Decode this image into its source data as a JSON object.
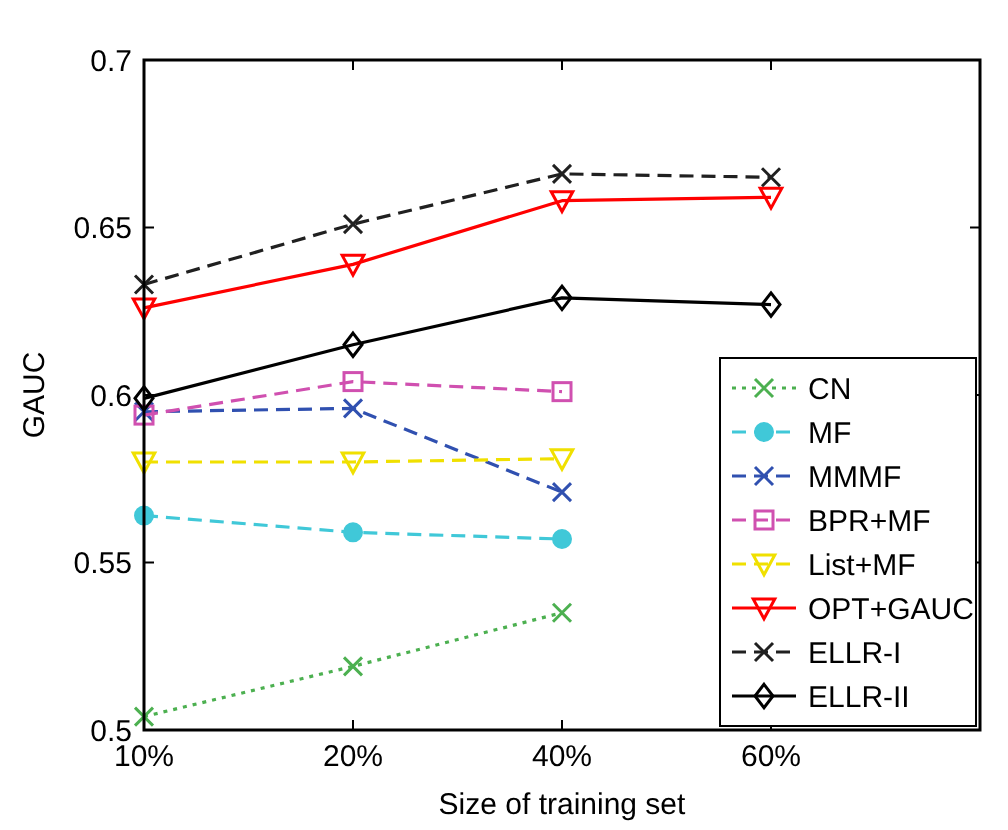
{
  "chart_data": {
    "type": "line",
    "xlabel": "Size of training set",
    "ylabel": "GAUC",
    "categories": [
      "10%",
      "20%",
      "40%",
      "60%",
      null
    ],
    "ylim": [
      0.5,
      0.7
    ],
    "yticks": [
      0.5,
      0.55,
      0.6,
      0.65,
      0.7
    ],
    "grid": false,
    "legend": "right",
    "series": [
      {
        "name": "CN",
        "color": "#4cb050",
        "marker": "cross",
        "line_style": "dotted",
        "values": [
          0.504,
          0.519,
          0.535,
          null,
          null
        ]
      },
      {
        "name": "MF",
        "color": "#40c8d8",
        "marker": "circle",
        "line_style": "dashed",
        "values": [
          0.564,
          0.559,
          0.557,
          null,
          null
        ]
      },
      {
        "name": "MMMF",
        "color": "#3050b0",
        "marker": "cross",
        "line_style": "dashed",
        "values": [
          0.595,
          0.596,
          0.571,
          null,
          null
        ]
      },
      {
        "name": "BPR+MF",
        "color": "#d050b0",
        "marker": "square",
        "line_style": "dashed",
        "values": [
          0.594,
          0.604,
          0.601,
          null,
          null
        ]
      },
      {
        "name": "List+MF",
        "color": "#f0e000",
        "marker": "triangle",
        "line_style": "dashed",
        "values": [
          0.58,
          0.58,
          0.581,
          null,
          null
        ]
      },
      {
        "name": "OPT+GAUC",
        "color": "#ff0000",
        "marker": "triangle",
        "line_style": "solid",
        "values": [
          0.626,
          0.639,
          0.658,
          0.659,
          null
        ]
      },
      {
        "name": "ELLR-I",
        "color": "#202020",
        "marker": "cross",
        "line_style": "dashed",
        "values": [
          0.633,
          0.651,
          0.666,
          0.665,
          null
        ]
      },
      {
        "name": "ELLR-II",
        "color": "#000000",
        "marker": "diamond",
        "line_style": "solid",
        "values": [
          0.599,
          0.615,
          0.629,
          0.627,
          null
        ]
      }
    ]
  }
}
